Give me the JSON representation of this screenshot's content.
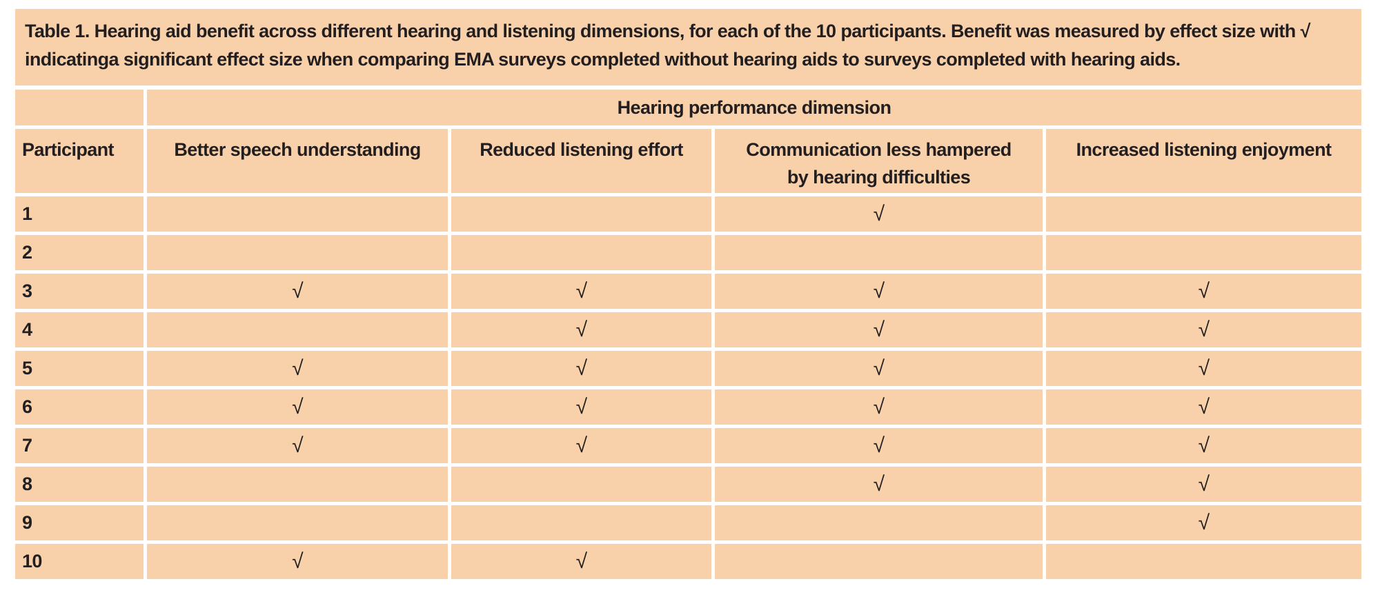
{
  "caption": "Table 1. Hearing aid benefit across different hearing and listening dimensions, for each of the 10 participants. Benefit was measured by effect size with √ indicatinga significant effect size when comparing EMA surveys completed without hearing aids to surveys completed with hearing aids.",
  "table": {
    "group_header": "Hearing performance dimension",
    "columns": [
      "Participant",
      "Better speech understanding",
      "Reduced listening effort",
      "Communication less hampered by hearing difficulties",
      "Increased listening enjoyment"
    ],
    "check_symbol": "√",
    "rows": [
      {
        "participant": "1",
        "cells": [
          "",
          "",
          "√",
          ""
        ]
      },
      {
        "participant": "2",
        "cells": [
          "",
          "",
          "",
          ""
        ]
      },
      {
        "participant": "3",
        "cells": [
          "√",
          "√",
          "√",
          "√"
        ]
      },
      {
        "participant": "4",
        "cells": [
          "",
          "√",
          "√",
          "√"
        ]
      },
      {
        "participant": "5",
        "cells": [
          "√",
          "√",
          "√",
          "√"
        ]
      },
      {
        "participant": "6",
        "cells": [
          "√",
          "√",
          "√",
          "√"
        ]
      },
      {
        "participant": "7",
        "cells": [
          "√",
          "√",
          "√",
          "√"
        ]
      },
      {
        "participant": "8",
        "cells": [
          "",
          "",
          "√",
          "√"
        ]
      },
      {
        "participant": "9",
        "cells": [
          "",
          "",
          "",
          "√"
        ]
      },
      {
        "participant": "10",
        "cells": [
          "√",
          "√",
          "",
          ""
        ]
      }
    ]
  },
  "colors": {
    "cell_fill": "#f8d1aa",
    "text": "#231f20",
    "grid_lines": "#ffffff"
  }
}
